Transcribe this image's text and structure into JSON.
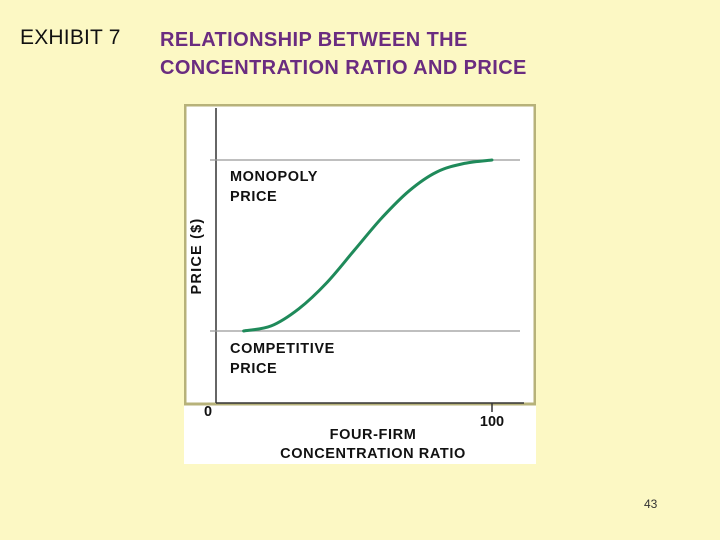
{
  "header": {
    "exhibit_label": "EXHIBIT 7",
    "title_line1": "RELATIONSHIP BETWEEN THE",
    "title_line2": "CONCENTRATION RATIO AND PRICE"
  },
  "chart_data": {
    "type": "line",
    "ylabel": "PRICE ($)",
    "xlabel_line1": "FOUR-FIRM",
    "xlabel_line2": "CONCENTRATION RATIO",
    "x_ticks": [
      "0",
      "100"
    ],
    "xlim": [
      0,
      100
    ],
    "reference_lines": [
      {
        "level": "high",
        "label_line1": "MONOPOLY",
        "label_line2": "PRICE"
      },
      {
        "level": "low",
        "label_line1": "COMPETITIVE",
        "label_line2": "PRICE"
      }
    ],
    "series": [
      {
        "color": "#1f8a5a",
        "x": [
          10,
          20,
          30,
          40,
          50,
          60,
          70,
          80,
          90,
          100
        ],
        "y": [
          0.0,
          0.03,
          0.13,
          0.28,
          0.47,
          0.66,
          0.82,
          0.93,
          0.98,
          1.0
        ]
      }
    ],
    "grid": false,
    "colors": {
      "background": "#fcf8c4",
      "plot_bg": "#ffffff",
      "frame": "#b7b27a",
      "curve": "#1f8a5a",
      "text": "#111111"
    }
  },
  "footer": {
    "page_number": "43"
  }
}
